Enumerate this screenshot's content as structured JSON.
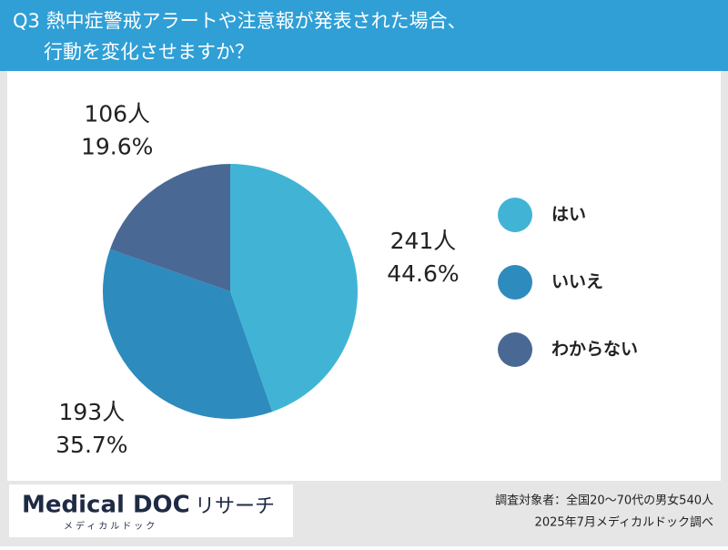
{
  "chart_data": {
    "type": "pie",
    "title_lines": [
      "Q3 熱中症警戒アラートや注意報が発表された場合、",
      "行動を変化させますか？"
    ],
    "categories": [
      "はい",
      "いいえ",
      "わからない"
    ],
    "values": [
      44.6,
      35.7,
      19.6
    ],
    "value_labels": [
      "44.6%",
      "35.7%",
      "19.6%"
    ],
    "counts": [
      241,
      193,
      106
    ],
    "count_labels": [
      "241人",
      "193人",
      "106人"
    ],
    "colors": [
      "#41b4d6",
      "#2e8bbd",
      "#4a6894"
    ],
    "legend": "right"
  },
  "footer": {
    "logo": "Medical DOC",
    "logo_sub": "メディカルドック",
    "logo_suffix": "リサーチ",
    "notes": [
      "調査対象者：全国20〜70代の男女540人",
      "2025年7月メディカルドック調べ"
    ]
  }
}
